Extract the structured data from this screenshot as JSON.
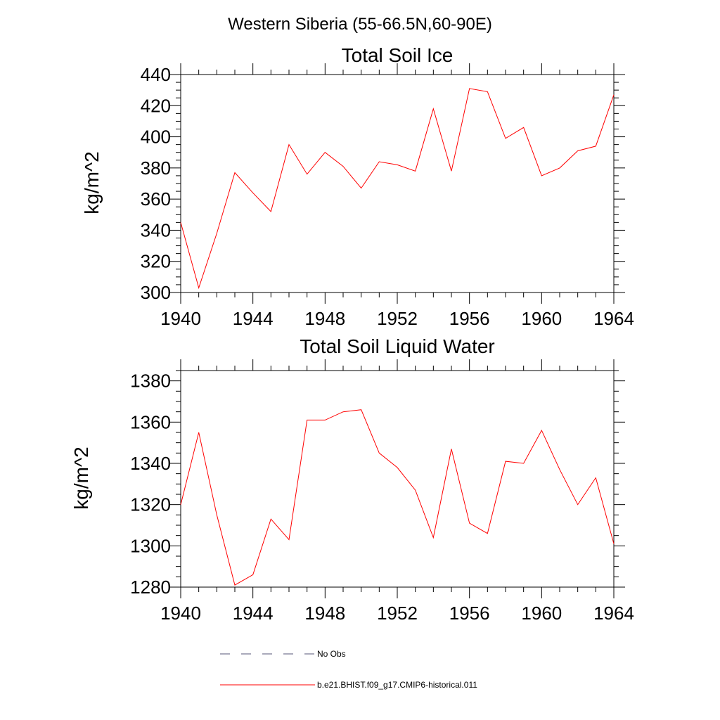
{
  "title": "Western Siberia (55-66.5N,60-90E)",
  "chart_data": [
    {
      "type": "line",
      "title": "Total Soil Ice",
      "xlabel": "",
      "ylabel": "kg/m^2",
      "xlim": [
        1940,
        1964
      ],
      "ylim": [
        300,
        440
      ],
      "xticks": [
        1940,
        1944,
        1948,
        1952,
        1956,
        1960,
        1964
      ],
      "yticks": [
        300,
        320,
        340,
        360,
        380,
        400,
        420,
        440
      ],
      "x": [
        1940,
        1941,
        1942,
        1943,
        1944,
        1945,
        1946,
        1947,
        1948,
        1949,
        1950,
        1951,
        1952,
        1953,
        1954,
        1955,
        1956,
        1957,
        1958,
        1959,
        1960,
        1961,
        1962,
        1963,
        1964
      ],
      "series": [
        {
          "name": "b.e21.BHIST.f09_g17.CMIP6-historical.011",
          "color": "#ff0000",
          "values": [
            345,
            303,
            338,
            377,
            364,
            352,
            395,
            376,
            390,
            381,
            367,
            384,
            382,
            378,
            418,
            378,
            431,
            429,
            399,
            406,
            375,
            380,
            391,
            394,
            427
          ]
        }
      ],
      "grid": false
    },
    {
      "type": "line",
      "title": "Total Soil Liquid Water",
      "xlabel": "",
      "ylabel": "kg/m^2",
      "xlim": [
        1940,
        1964
      ],
      "ylim": [
        1280,
        1385
      ],
      "xticks": [
        1940,
        1944,
        1948,
        1952,
        1956,
        1960,
        1964
      ],
      "yticks": [
        1280,
        1300,
        1320,
        1340,
        1360,
        1380
      ],
      "x": [
        1940,
        1941,
        1942,
        1943,
        1944,
        1945,
        1946,
        1947,
        1948,
        1949,
        1950,
        1951,
        1952,
        1953,
        1954,
        1955,
        1956,
        1957,
        1958,
        1959,
        1960,
        1961,
        1962,
        1963,
        1964
      ],
      "series": [
        {
          "name": "b.e21.BHIST.f09_g17.CMIP6-historical.011",
          "color": "#ff0000",
          "values": [
            1320,
            1355,
            1315,
            1281,
            1286,
            1313,
            1303,
            1361,
            1361,
            1365,
            1366,
            1345,
            1338,
            1327,
            1304,
            1347,
            1311,
            1306,
            1341,
            1340,
            1356,
            1337,
            1320,
            1333,
            1301
          ]
        }
      ],
      "grid": false
    }
  ],
  "legend": {
    "placement": "bottom",
    "items": [
      {
        "label": "No Obs",
        "style": "dashed",
        "color": "#555577"
      },
      {
        "label": "b.e21.BHIST.f09_g17.CMIP6-historical.011",
        "style": "solid",
        "color": "#ff0000"
      }
    ]
  }
}
